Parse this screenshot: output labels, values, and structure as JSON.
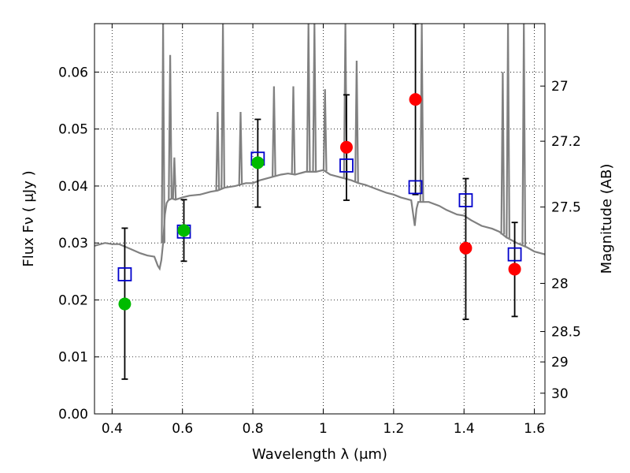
{
  "chart_data": {
    "type": "scatter",
    "xlabel": "Wavelength  λ (μm)",
    "ylabel": "Flux  Fν  ( μJy )",
    "ylabel_right": "Magnitude (AB)",
    "xlim": [
      0.35,
      1.63
    ],
    "ylim": [
      0.0,
      0.0685
    ],
    "x_ticks": [
      0.4,
      0.6,
      0.8,
      1.0,
      1.2,
      1.4,
      1.6
    ],
    "x_tick_labels": [
      "0.4",
      "0.6",
      "0.8",
      "1",
      "1.2",
      "1.4",
      "1.6"
    ],
    "y_ticks": [
      0.0,
      0.01,
      0.02,
      0.03,
      0.04,
      0.05,
      0.06
    ],
    "y_tick_labels": [
      "0.00",
      "0.01",
      "0.02",
      "0.03",
      "0.04",
      "0.05",
      "0.06"
    ],
    "right_ticks": [
      {
        "label": "27",
        "mag": 27.0
      },
      {
        "label": "27.2",
        "mag": 27.2
      },
      {
        "label": "27.5",
        "mag": 27.5
      },
      {
        "label": "28",
        "mag": 28.0
      },
      {
        "label": "28.5",
        "mag": 28.5
      },
      {
        "label": "29",
        "mag": 29.0
      },
      {
        "label": "30",
        "mag": 30.0
      }
    ],
    "grid": true,
    "colors": {
      "model_line": "#808080",
      "model_points": "#0000cc",
      "green_points": "#00bb00",
      "red_points": "#ff0000",
      "error_bars": "#000000"
    },
    "series": [
      {
        "kind": "model_spectrum_line",
        "x": [
          0.35,
          0.38,
          0.4,
          0.42,
          0.45,
          0.48,
          0.5,
          0.52,
          0.525,
          0.53,
          0.535,
          0.54,
          0.545,
          0.55,
          0.555,
          0.56,
          0.57,
          0.58,
          0.6,
          0.62,
          0.65,
          0.68,
          0.7,
          0.72,
          0.75,
          0.78,
          0.8,
          0.82,
          0.85,
          0.88,
          0.9,
          0.92,
          0.95,
          0.98,
          1.0,
          1.02,
          1.05,
          1.08,
          1.1,
          1.12,
          1.15,
          1.18,
          1.2,
          1.22,
          1.25,
          1.26,
          1.265,
          1.27,
          1.3,
          1.33,
          1.35,
          1.38,
          1.4,
          1.42,
          1.45,
          1.48,
          1.5,
          1.52,
          1.55,
          1.58,
          1.6,
          1.63
        ],
        "y": [
          0.0295,
          0.03,
          0.0298,
          0.0298,
          0.029,
          0.0282,
          0.0278,
          0.0276,
          0.0268,
          0.026,
          0.0255,
          0.027,
          0.03,
          0.035,
          0.037,
          0.0375,
          0.0378,
          0.0376,
          0.038,
          0.0383,
          0.0385,
          0.039,
          0.0392,
          0.0397,
          0.04,
          0.0405,
          0.0405,
          0.041,
          0.0415,
          0.042,
          0.0422,
          0.042,
          0.0425,
          0.0425,
          0.0428,
          0.042,
          0.0415,
          0.041,
          0.0405,
          0.0402,
          0.0395,
          0.0388,
          0.0385,
          0.038,
          0.0375,
          0.033,
          0.036,
          0.0372,
          0.0372,
          0.0365,
          0.0358,
          0.035,
          0.0348,
          0.034,
          0.033,
          0.0325,
          0.032,
          0.031,
          0.03,
          0.0292,
          0.0285,
          0.028
        ]
      },
      {
        "kind": "emission_lines",
        "x": [
          0.545,
          0.565,
          0.577,
          0.7,
          0.715,
          0.765,
          0.86,
          0.915,
          0.958,
          0.975,
          1.005,
          1.063,
          1.095,
          1.28,
          1.51,
          1.525,
          1.57
        ],
        "peak": [
          0.0685,
          0.063,
          0.045,
          0.053,
          0.0685,
          0.053,
          0.0575,
          0.0575,
          0.0685,
          0.0685,
          0.057,
          0.0685,
          0.062,
          0.0685,
          0.06,
          0.0685,
          0.0685
        ]
      },
      {
        "kind": "model_points_squares",
        "x": [
          0.436,
          0.604,
          0.814,
          1.066,
          1.262,
          1.405,
          1.544
        ],
        "y": [
          0.0245,
          0.032,
          0.0448,
          0.0436,
          0.0398,
          0.0375,
          0.028
        ]
      },
      {
        "kind": "observed_green",
        "x": [
          0.436,
          0.604,
          0.814
        ],
        "y": [
          0.0193,
          0.0322,
          0.0441
        ],
        "err_low": [
          0.0061,
          0.0268,
          0.0363
        ],
        "err_high": [
          0.0326,
          0.0376,
          0.0517
        ]
      },
      {
        "kind": "observed_red",
        "x": [
          1.066,
          1.262,
          1.405,
          1.544
        ],
        "y": [
          0.0468,
          0.0552,
          0.0291,
          0.0254
        ],
        "err_low": [
          0.0375,
          0.0385,
          0.0166,
          0.0171
        ],
        "err_high": [
          0.056,
          0.0685,
          0.0413,
          0.0336
        ]
      }
    ]
  }
}
